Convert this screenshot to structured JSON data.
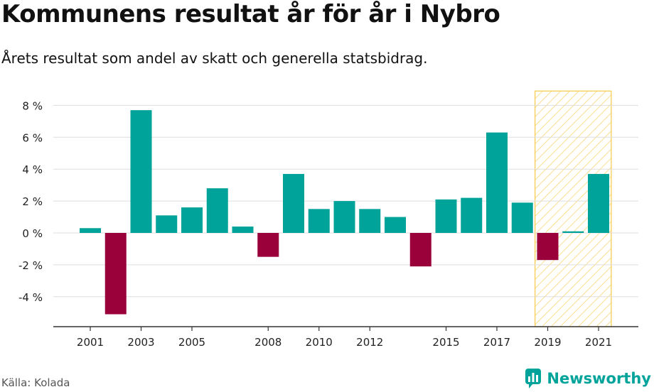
{
  "title": "Kommunens resultat år för år i Nybro",
  "subtitle": "Årets resultat som andel av skatt och generella statsbidrag.",
  "source": "Källa: Kolada",
  "brand": "Newsworthy",
  "colors": {
    "positive": "#00a39a",
    "negative": "#9a003a",
    "highlight_stripe": "#f7c948",
    "grid": "#dddddd",
    "axis": "#333333"
  },
  "chart_data": {
    "type": "bar",
    "title": "Kommunens resultat år för år i Nybro",
    "subtitle": "Årets resultat som andel av skatt och generella statsbidrag.",
    "x": [
      2001,
      2002,
      2003,
      2004,
      2005,
      2006,
      2007,
      2008,
      2009,
      2010,
      2011,
      2012,
      2013,
      2014,
      2015,
      2016,
      2017,
      2018,
      2019,
      2020,
      2021
    ],
    "values": [
      0.3,
      -5.1,
      7.7,
      1.1,
      1.6,
      2.8,
      0.4,
      -1.5,
      3.7,
      1.5,
      2.0,
      1.5,
      1.0,
      -2.1,
      2.1,
      2.2,
      6.3,
      1.9,
      -1.7,
      0.1,
      3.7
    ],
    "y_ticks": [
      8,
      6,
      4,
      2,
      0,
      -2,
      -4
    ],
    "y_tick_labels": [
      "8 %",
      "6 %",
      "4 %",
      "2 %",
      "0 %",
      "-2 %",
      "-4 %"
    ],
    "x_tick_labels": [
      "2001",
      "2003",
      "2005",
      "2008",
      "2010",
      "2012",
      "2015",
      "2017",
      "2019",
      "2021"
    ],
    "ylim": [
      -5.8,
      8.9
    ],
    "highlight_range": [
      2019,
      2021
    ],
    "grid": true,
    "legend": "none"
  }
}
